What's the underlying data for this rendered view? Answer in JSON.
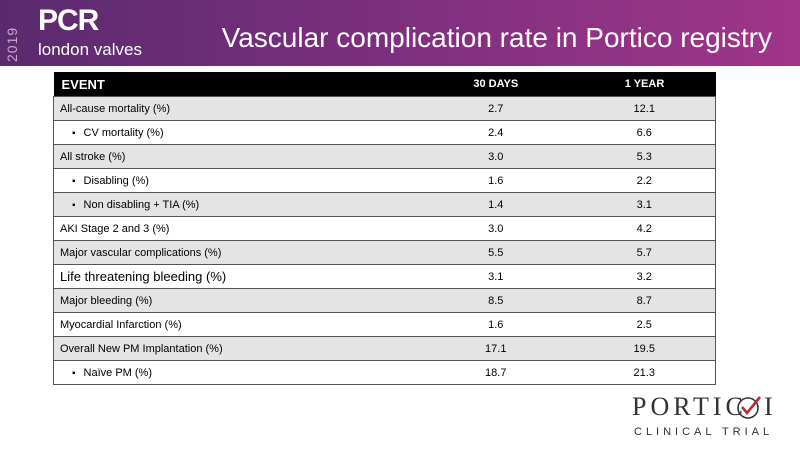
{
  "header": {
    "year": "2019",
    "brand": "PCR",
    "brand_sub": "london valves",
    "title": "Vascular complication rate in Portico registry"
  },
  "table": {
    "columns": [
      "EVENT",
      "30 DAYS",
      "1 YEAR"
    ],
    "rows": [
      [
        "All-cause mortality (%)",
        "2.7",
        "12.1"
      ],
      [
        "CV mortality (%)",
        "2.4",
        "6.6"
      ],
      [
        "All stroke (%)",
        "3.0",
        "5.3"
      ],
      [
        "Disabling (%)",
        "1.6",
        "2.2"
      ],
      [
        "Non disabling + TIA (%)",
        "1.4",
        "3.1"
      ],
      [
        "AKI Stage 2 and 3 (%)",
        "3.0",
        "4.2"
      ],
      [
        "Major vascular complications (%)",
        "5.5",
        "5.7"
      ],
      [
        "Life threatening bleeding (%)",
        "3.1",
        "3.2"
      ],
      [
        "Major bleeding (%)",
        "8.5",
        "8.7"
      ],
      [
        "Myocardial Infarction (%)",
        "1.6",
        "2.5"
      ],
      [
        "Overall New PM Implantation (%)",
        "17.1",
        "19.5"
      ],
      [
        "Naïve PM (%)",
        "18.7",
        "21.3"
      ]
    ],
    "indented_rows": [
      1,
      3,
      4,
      11
    ]
  },
  "logo": {
    "name_left": "PORTIC",
    "name_right": "I",
    "tagline": "CLINICAL TRIAL"
  }
}
